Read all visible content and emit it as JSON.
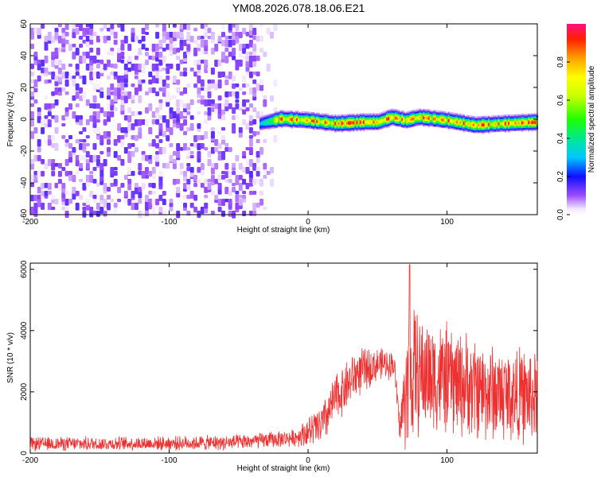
{
  "title": "YM08.2026.078.18.06.E21",
  "colors": {
    "snr_line": "#ee3030",
    "axis": "#000000"
  },
  "chart_data": [
    {
      "type": "heatmap",
      "xlabel": "Height of straight line (km)",
      "ylabel": "Frequency (Hz)",
      "xlim": [
        -200,
        165
      ],
      "ylim": [
        -60,
        60
      ],
      "xticks": [
        -200,
        -100,
        0,
        100
      ],
      "yticks": [
        -60,
        -40,
        -20,
        0,
        20,
        40,
        60
      ],
      "colorbar": {
        "label": "Normalized spectral amplitude",
        "range": [
          0,
          1
        ],
        "ticks": [
          0,
          0.2,
          0.4,
          0.6,
          0.8
        ],
        "tick_labels": [
          "0.0",
          "0.2",
          "0.4",
          "0.6",
          "0.8"
        ],
        "colormap": "rainbow"
      },
      "regions": [
        {
          "name": "noise",
          "x_range": [
            -200,
            -20
          ],
          "freq_range": [
            -60,
            60
          ],
          "amplitude": [
            0.0,
            0.15
          ]
        },
        {
          "name": "signal",
          "x_range": [
            -35,
            165
          ],
          "center_freq": [
            [
              -35,
              -3
            ],
            [
              -20,
              0
            ],
            [
              0,
              -1
            ],
            [
              20,
              -3
            ],
            [
              40,
              -2
            ],
            [
              50,
              -2
            ],
            [
              60,
              1
            ],
            [
              70,
              -1
            ],
            [
              80,
              1
            ],
            [
              90,
              0
            ],
            [
              100,
              -1
            ],
            [
              120,
              -4
            ],
            [
              140,
              -3
            ],
            [
              165,
              -2
            ]
          ],
          "bandwidth_hz": 4,
          "amplitude": [
            0.3,
            0.98
          ]
        }
      ]
    },
    {
      "type": "line",
      "xlabel": "Height of straight line (km)",
      "ylabel": "SNR (10 * v/v)",
      "xlim": [
        -200,
        165
      ],
      "ylim": [
        0,
        6200
      ],
      "xticks": [
        -200,
        -100,
        0,
        100
      ],
      "yticks": [
        0,
        2000,
        4000,
        6000
      ],
      "envelope": [
        {
          "x": -200,
          "base": 300,
          "spread": 250
        },
        {
          "x": -100,
          "base": 320,
          "spread": 250
        },
        {
          "x": -50,
          "base": 350,
          "spread": 280
        },
        {
          "x": -10,
          "base": 500,
          "spread": 300
        },
        {
          "x": 10,
          "base": 900,
          "spread": 800
        },
        {
          "x": 20,
          "base": 1800,
          "spread": 900
        },
        {
          "x": 35,
          "base": 2600,
          "spread": 900
        },
        {
          "x": 50,
          "base": 2900,
          "spread": 600
        },
        {
          "x": 62,
          "base": 2900,
          "spread": 500
        },
        {
          "x": 66,
          "base": 800,
          "spread": 500
        },
        {
          "x": 72,
          "base": 2500,
          "spread": 2800
        },
        {
          "x": 80,
          "base": 2600,
          "spread": 2200
        },
        {
          "x": 100,
          "base": 2400,
          "spread": 2000
        },
        {
          "x": 130,
          "base": 2000,
          "spread": 1800
        },
        {
          "x": 165,
          "base": 1800,
          "spread": 1700
        }
      ],
      "peak": {
        "x": 73,
        "y": 6150
      }
    }
  ]
}
